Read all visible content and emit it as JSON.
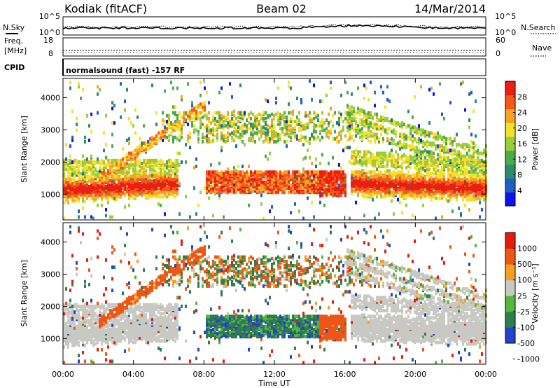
{
  "header": {
    "station": "Kodiak (fitACF)",
    "beam": "Beam 02",
    "date": "14/Mar/2014",
    "cpid_label": "CPID",
    "cpid_value": "normalsound (fast) -157 RF"
  },
  "top_strips": {
    "nsky_label": "N.Sky",
    "nsearch_label": "N.Search",
    "freq_label": "Freq.",
    "freq_unit": "[MHz]",
    "nave_label": "Nave",
    "noise_left_ticks": [
      "10^5",
      "10^0"
    ],
    "noise_right_ticks": [
      "10^5",
      "10^0"
    ],
    "freq_ticks": [
      "18",
      "8"
    ],
    "nave_ticks": [
      "60",
      "0"
    ]
  },
  "chart_data": [
    {
      "type": "heatmap",
      "title": "",
      "quantity": "Power",
      "colorbar_label": "Power [dB]",
      "colorbar_ticks": [
        "28",
        "24",
        "20",
        "16",
        "12",
        "8",
        "4"
      ],
      "colorbar_range": [
        0,
        32
      ],
      "ylabel": "Slant Range [km]",
      "yticks": [
        "4000",
        "3000",
        "2000",
        "1000"
      ],
      "ylim": [
        200,
        4600
      ],
      "xlabel": "",
      "xlim": [
        "00:00",
        "24:00"
      ],
      "colors": [
        "#0b13ee",
        "#1f5ec4",
        "#2b8c6a",
        "#4caa4c",
        "#9bcc3a",
        "#f3e12a",
        "#f6a325",
        "#f15a1a",
        "#ea1f12"
      ]
    },
    {
      "type": "heatmap",
      "title": "",
      "quantity": "Velocity",
      "colorbar_label": "Velocity [m s⁻¹]",
      "colorbar_ticks": [
        "1000",
        "500",
        "100",
        "25",
        "-25",
        "-100",
        "-500",
        "-1000"
      ],
      "colorbar_range": [
        -1200,
        1200
      ],
      "ylabel": "Slant Range [km]",
      "yticks": [
        "4000",
        "3000",
        "2000",
        "1000"
      ],
      "ylim": [
        200,
        4600
      ],
      "xlabel": "Time UT",
      "xticks": [
        "00:00",
        "04:00",
        "08:00",
        "12:00",
        "16:00",
        "20:00",
        "00:00"
      ],
      "xlim": [
        "00:00",
        "24:00"
      ],
      "colors": [
        "#2443c8",
        "#2f7c4e",
        "#55b640",
        "#c9c9c4",
        "#f3a023",
        "#ec5716",
        "#e41b10"
      ]
    }
  ]
}
